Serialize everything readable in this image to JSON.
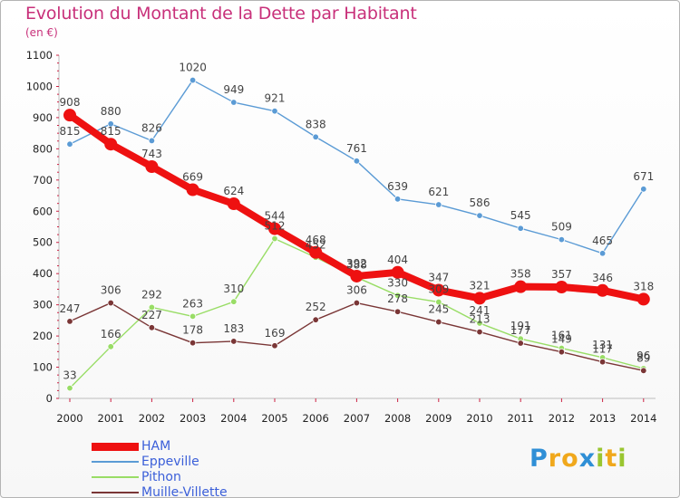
{
  "title": "Evolution du Montant de la Dette par Habitant",
  "unit": "(en €)",
  "brand": {
    "letters": [
      {
        "ch": "P",
        "color": "#2f8fd6"
      },
      {
        "ch": "r",
        "color": "#f0a81c"
      },
      {
        "ch": "o",
        "color": "#f0a81c"
      },
      {
        "ch": "x",
        "color": "#2f8fd6"
      },
      {
        "ch": "i",
        "color": "#9ac630"
      },
      {
        "ch": "t",
        "color": "#f0a81c"
      },
      {
        "ch": "i",
        "color": "#9ac630"
      }
    ]
  },
  "chart_data": {
    "type": "line",
    "title": "Evolution du Montant de la Dette par Habitant",
    "subtitle": "(en €)",
    "x": [
      "2000",
      "2001",
      "2002",
      "2003",
      "2004",
      "2005",
      "2006",
      "2007",
      "2008",
      "2009",
      "2010",
      "2011",
      "2012",
      "2013",
      "2014"
    ],
    "ylim": [
      0,
      1100
    ],
    "yticks": [
      0,
      100,
      200,
      300,
      400,
      500,
      600,
      700,
      800,
      900,
      1000,
      1100
    ],
    "grid": false,
    "legend_position": "bottom-left",
    "series": [
      {
        "name": "HAM",
        "color": "#ee1111",
        "values": [
          908,
          815,
          743,
          669,
          624,
          544,
          468,
          392,
          404,
          347,
          321,
          358,
          357,
          346,
          318
        ]
      },
      {
        "name": "Eppeville",
        "color": "#5b9bd5",
        "values": [
          815,
          880,
          826,
          1020,
          949,
          921,
          838,
          761,
          639,
          621,
          586,
          545,
          509,
          465,
          671
        ]
      },
      {
        "name": "Pithon",
        "color": "#99dd66",
        "values": [
          33,
          166,
          292,
          263,
          310,
          512,
          452,
          388,
          330,
          309,
          241,
          191,
          161,
          131,
          96
        ]
      },
      {
        "name": "Muille-Villette",
        "color": "#7a3636",
        "values": [
          247,
          306,
          227,
          178,
          183,
          169,
          252,
          306,
          278,
          245,
          213,
          177,
          149,
          117,
          89
        ]
      }
    ]
  }
}
